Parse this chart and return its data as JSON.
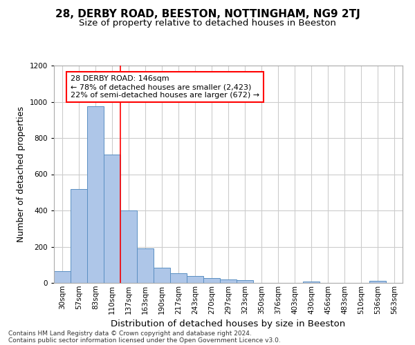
{
  "title_line1": "28, DERBY ROAD, BEESTON, NOTTINGHAM, NG9 2TJ",
  "title_line2": "Size of property relative to detached houses in Beeston",
  "xlabel": "Distribution of detached houses by size in Beeston",
  "ylabel": "Number of detached properties",
  "footer_line1": "Contains HM Land Registry data © Crown copyright and database right 2024.",
  "footer_line2": "Contains public sector information licensed under the Open Government Licence v3.0.",
  "categories": [
    "30sqm",
    "57sqm",
    "83sqm",
    "110sqm",
    "137sqm",
    "163sqm",
    "190sqm",
    "217sqm",
    "243sqm",
    "270sqm",
    "297sqm",
    "323sqm",
    "350sqm",
    "376sqm",
    "403sqm",
    "430sqm",
    "456sqm",
    "483sqm",
    "510sqm",
    "536sqm",
    "563sqm"
  ],
  "values": [
    65,
    520,
    975,
    710,
    400,
    190,
    85,
    55,
    38,
    28,
    18,
    15,
    0,
    0,
    0,
    8,
    0,
    0,
    0,
    10,
    0
  ],
  "bar_color": "#aec6e8",
  "bar_edge_color": "#5a8fc2",
  "annotation_box_text_line1": "28 DERBY ROAD: 146sqm",
  "annotation_box_text_line2": "← 78% of detached houses are smaller (2,423)",
  "annotation_box_text_line3": "22% of semi-detached houses are larger (672) →",
  "annotation_box_color": "white",
  "annotation_box_edge_color": "red",
  "red_line_x": 3.5,
  "ylim": [
    0,
    1200
  ],
  "yticks": [
    0,
    200,
    400,
    600,
    800,
    1000,
    1200
  ],
  "background_color": "white",
  "grid_color": "#cccccc",
  "title_fontsize": 11,
  "subtitle_fontsize": 9.5,
  "axis_label_fontsize": 9,
  "tick_fontsize": 7.5,
  "annotation_fontsize": 8,
  "footer_fontsize": 6.5
}
